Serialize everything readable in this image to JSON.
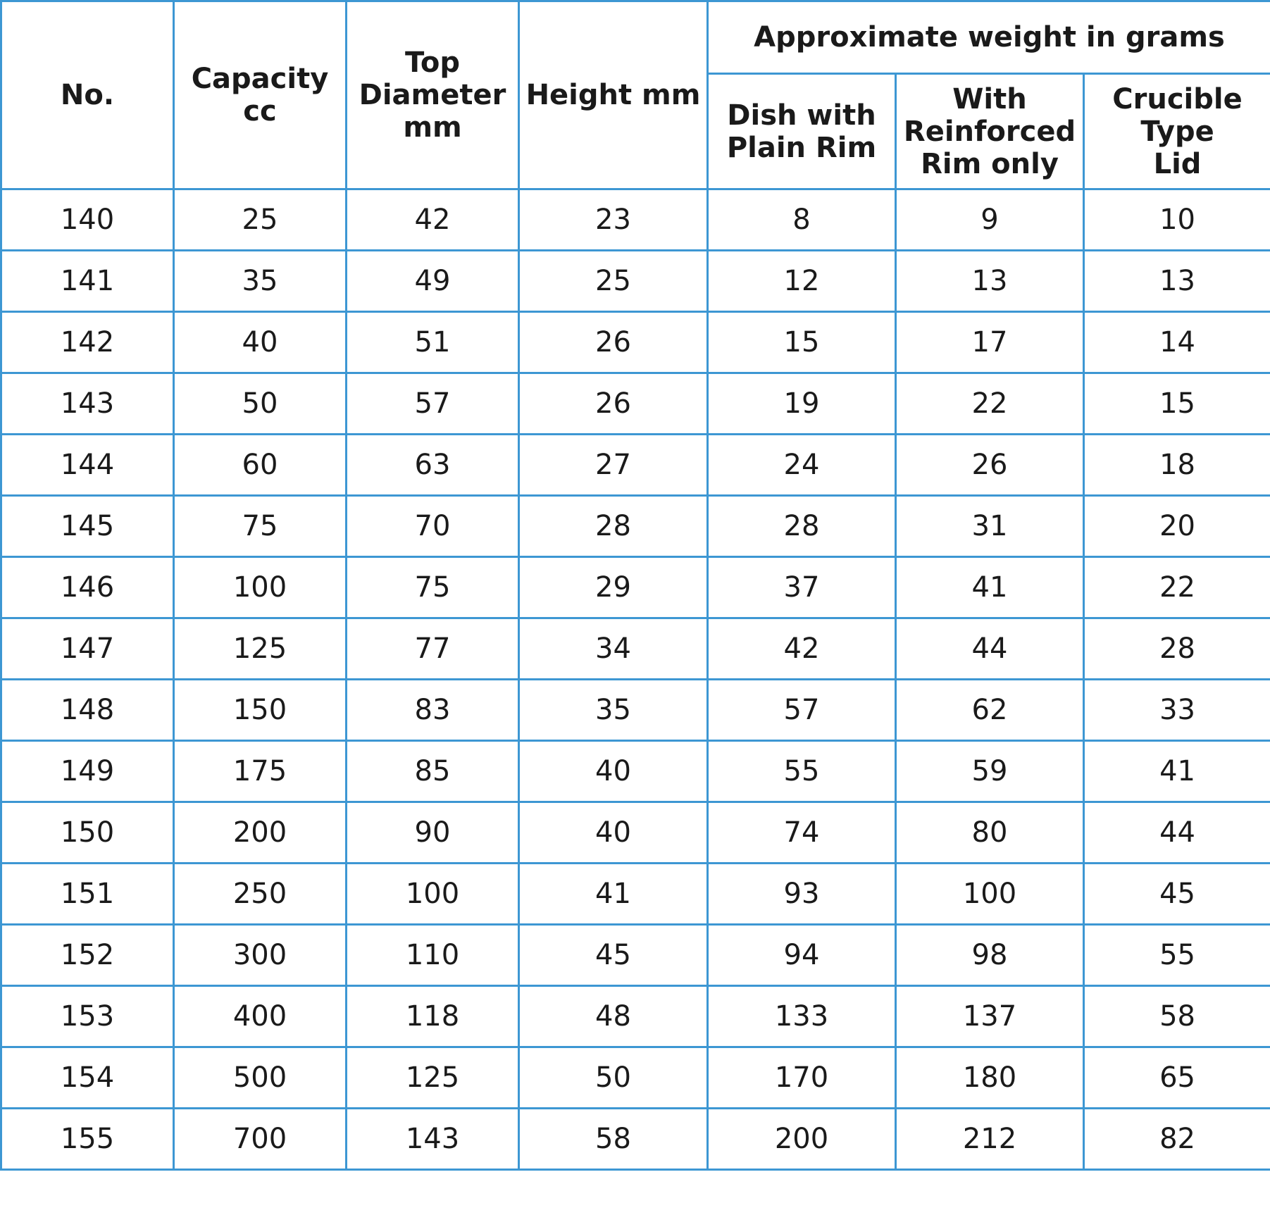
{
  "table": {
    "headers": {
      "no": "No.",
      "capacity": "Capacity\ncc",
      "top_diameter": "Top\nDiameter\nmm",
      "height": "Height mm",
      "weight_group": "Approximate weight in grams",
      "dish_plain": "Dish with\nPlain Rim",
      "reinforced": "With\nReinforced\nRim only",
      "crucible_lid": "Crucible\nType\nLid"
    },
    "rows": [
      {
        "no": "140",
        "capacity": "25",
        "top_diameter": "42",
        "height": "23",
        "dish_plain": "8",
        "reinforced": "9",
        "crucible_lid": "10"
      },
      {
        "no": "141",
        "capacity": "35",
        "top_diameter": "49",
        "height": "25",
        "dish_plain": "12",
        "reinforced": "13",
        "crucible_lid": "13"
      },
      {
        "no": "142",
        "capacity": "40",
        "top_diameter": "51",
        "height": "26",
        "dish_plain": "15",
        "reinforced": "17",
        "crucible_lid": "14"
      },
      {
        "no": "143",
        "capacity": "50",
        "top_diameter": "57",
        "height": "26",
        "dish_plain": "19",
        "reinforced": "22",
        "crucible_lid": "15"
      },
      {
        "no": "144",
        "capacity": "60",
        "top_diameter": "63",
        "height": "27",
        "dish_plain": "24",
        "reinforced": "26",
        "crucible_lid": "18"
      },
      {
        "no": "145",
        "capacity": "75",
        "top_diameter": "70",
        "height": "28",
        "dish_plain": "28",
        "reinforced": "31",
        "crucible_lid": "20"
      },
      {
        "no": "146",
        "capacity": "100",
        "top_diameter": "75",
        "height": "29",
        "dish_plain": "37",
        "reinforced": "41",
        "crucible_lid": "22"
      },
      {
        "no": "147",
        "capacity": "125",
        "top_diameter": "77",
        "height": "34",
        "dish_plain": "42",
        "reinforced": "44",
        "crucible_lid": "28"
      },
      {
        "no": "148",
        "capacity": "150",
        "top_diameter": "83",
        "height": "35",
        "dish_plain": "57",
        "reinforced": "62",
        "crucible_lid": "33"
      },
      {
        "no": "149",
        "capacity": "175",
        "top_diameter": "85",
        "height": "40",
        "dish_plain": "55",
        "reinforced": "59",
        "crucible_lid": "41"
      },
      {
        "no": "150",
        "capacity": "200",
        "top_diameter": "90",
        "height": "40",
        "dish_plain": "74",
        "reinforced": "80",
        "crucible_lid": "44"
      },
      {
        "no": "151",
        "capacity": "250",
        "top_diameter": "100",
        "height": "41",
        "dish_plain": "93",
        "reinforced": "100",
        "crucible_lid": "45"
      },
      {
        "no": "152",
        "capacity": "300",
        "top_diameter": "110",
        "height": "45",
        "dish_plain": "94",
        "reinforced": "98",
        "crucible_lid": "55"
      },
      {
        "no": "153",
        "capacity": "400",
        "top_diameter": "118",
        "height": "48",
        "dish_plain": "133",
        "reinforced": "137",
        "crucible_lid": "58"
      },
      {
        "no": "154",
        "capacity": "500",
        "top_diameter": "125",
        "height": "50",
        "dish_plain": "170",
        "reinforced": "180",
        "crucible_lid": "65"
      },
      {
        "no": "155",
        "capacity": "700",
        "top_diameter": "143",
        "height": "58",
        "dish_plain": "200",
        "reinforced": "212",
        "crucible_lid": "82"
      }
    ]
  },
  "colors": {
    "grid_line": "#3d97d3",
    "text": "#1a1a1a",
    "background": "#ffffff"
  }
}
